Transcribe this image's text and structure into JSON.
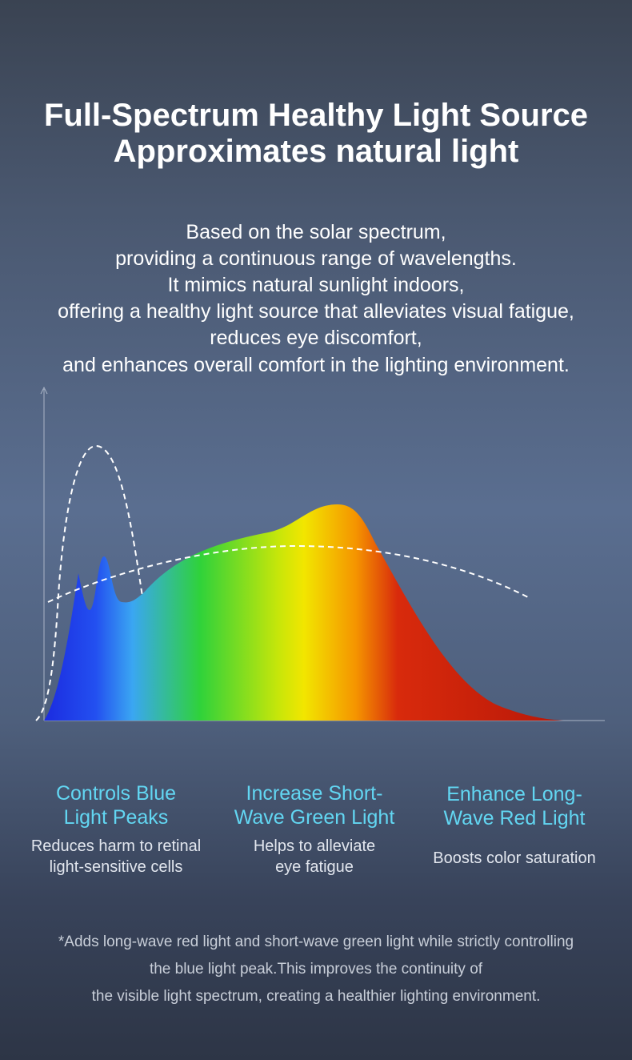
{
  "header": {
    "title_lines": [
      "Full-Spectrum Healthy Light Source",
      "Approximates natural light"
    ]
  },
  "intro": {
    "lines": [
      "Based on the solar spectrum,",
      "providing a continuous range of wavelengths.",
      "It mimics natural sunlight indoors,",
      "offering a healthy light source that alleviates visual fatigue,",
      "reduces eye discomfort,",
      "and enhances overall comfort in the lighting environment."
    ]
  },
  "features": [
    {
      "title_lines": [
        "Controls Blue",
        "Light Peaks"
      ],
      "description_lines": [
        "Reduces harm to retinal",
        "light-sensitive cells"
      ]
    },
    {
      "title_lines": [
        "Increase Short-",
        "Wave Green Light"
      ],
      "description_lines": [
        "Helps to alleviate",
        "eye fatigue"
      ]
    },
    {
      "title_lines": [
        "Enhance Long-",
        "Wave Red Light"
      ],
      "description_lines": [
        "Boosts color saturation"
      ]
    }
  ],
  "footnote": {
    "lines": [
      "*Adds long-wave red light and short-wave green light while strictly controlling",
      "the blue light peak.This improves the continuity of",
      "the visible light spectrum, creating a healthier lighting environment."
    ]
  }
}
